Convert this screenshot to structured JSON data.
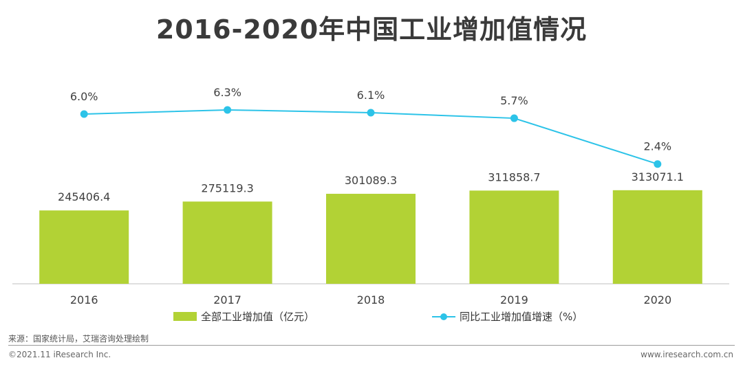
{
  "title": "2016-2020年中国工业增加值情况",
  "colors": {
    "bar": "#b2d235",
    "line": "#2cc3e8",
    "axis": "#bfbfbf",
    "text": "#404040"
  },
  "chart_data": {
    "type": "bar",
    "title": "2016-2020年中国工业增加值情况",
    "categories": [
      "2016",
      "2017",
      "2018",
      "2019",
      "2020"
    ],
    "series": [
      {
        "name": "全部工业增加值（亿元）",
        "type": "bar",
        "values": [
          245406.4,
          275119.3,
          301089.3,
          311858.7,
          313071.1
        ],
        "labels": [
          "245406.4",
          "275119.3",
          "301089.3",
          "311858.7",
          "313071.1"
        ]
      },
      {
        "name": "同比工业增加值增速（%）",
        "type": "line",
        "values": [
          6.0,
          6.3,
          6.1,
          5.7,
          2.4
        ],
        "labels": [
          "6.0%",
          "6.3%",
          "6.1%",
          "5.7%",
          "2.4%"
        ]
      }
    ],
    "legend": [
      "全部工业增加值（亿元）",
      "同比工业增加值增速（%）"
    ],
    "legend_position": "bottom"
  },
  "footer": {
    "source": "来源：国家统计局，艾瑞咨询处理绘制",
    "copyright": "©2021.11 iResearch Inc.",
    "website": "www.iresearch.com.cn"
  }
}
